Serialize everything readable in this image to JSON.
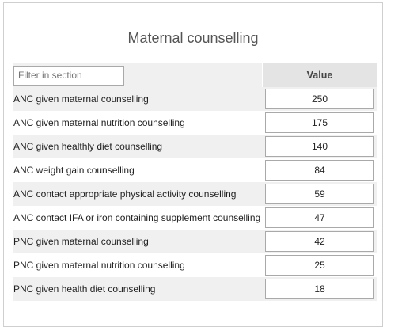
{
  "section": {
    "title": "Maternal counselling",
    "filter_placeholder": "Filter in section",
    "value_header": "Value",
    "rows": [
      {
        "label": "ANC given maternal counselling",
        "value": "250"
      },
      {
        "label": "ANC given maternal nutrition counselling",
        "value": "175"
      },
      {
        "label": "ANC given healthly diet counselling",
        "value": "140"
      },
      {
        "label": "ANC weight gain counselling",
        "value": "84"
      },
      {
        "label": "ANC contact appropriate physical activity counselling",
        "value": "59"
      },
      {
        "label": "ANC contact IFA or iron containing supplement counselling",
        "value": "47"
      },
      {
        "label": "PNC given maternal counselling",
        "value": "42"
      },
      {
        "label": "PNC given maternal nutrition counselling",
        "value": "25"
      },
      {
        "label": "PNC given health diet counselling",
        "value": "18"
      }
    ]
  }
}
